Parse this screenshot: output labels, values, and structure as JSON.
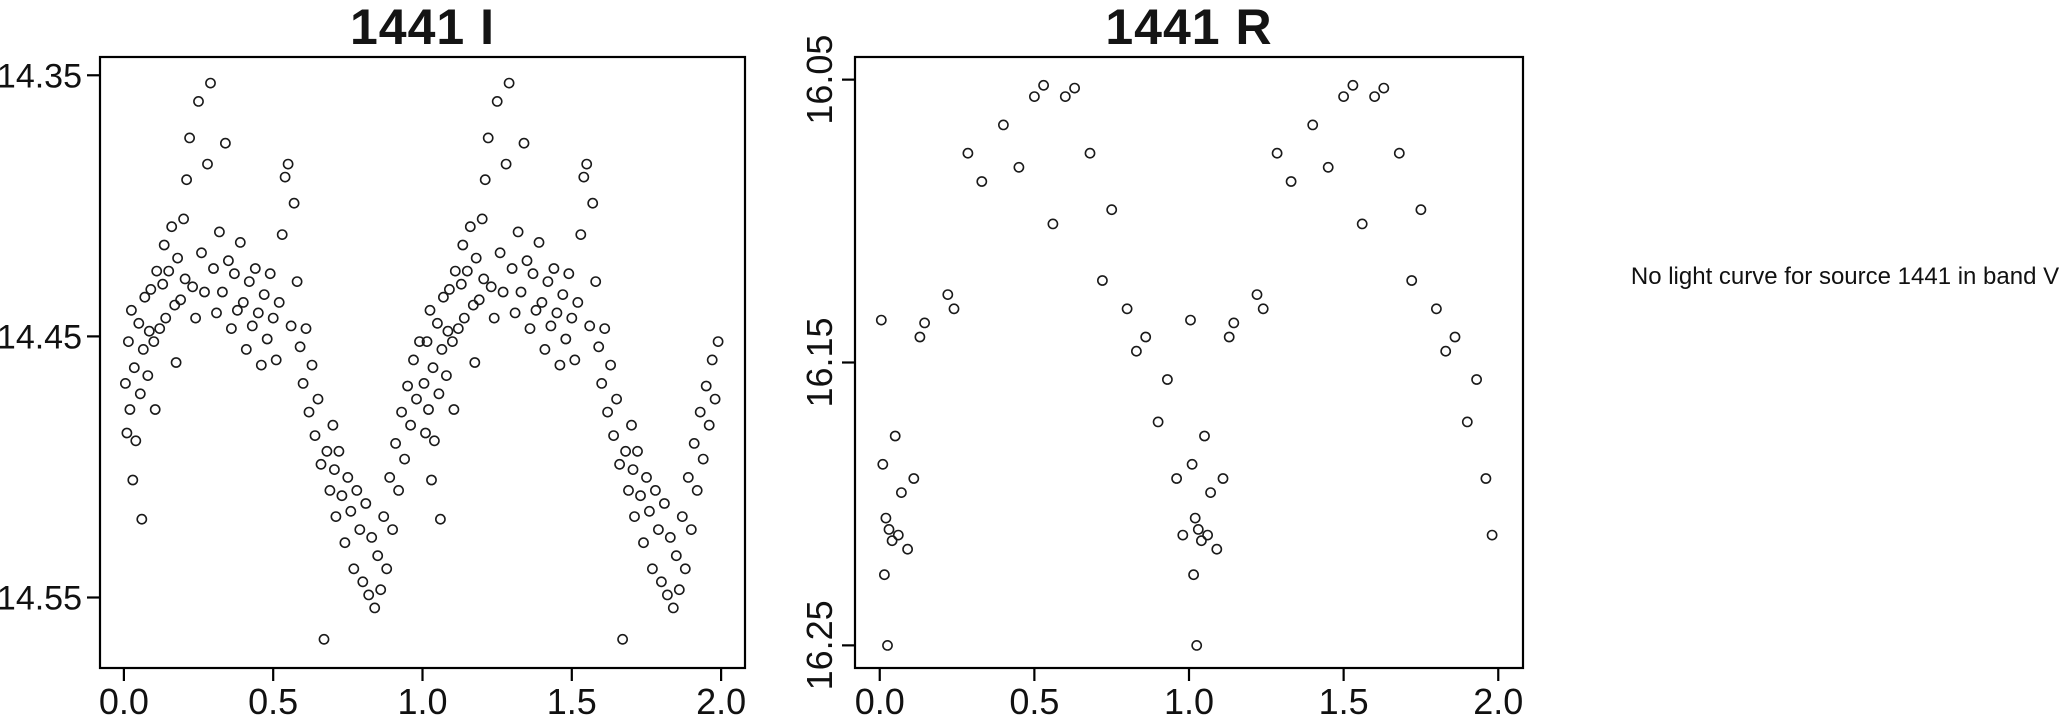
{
  "figure": {
    "background": "#ffffff",
    "axis_color": "#000000",
    "point_color": "#1a1a1a"
  },
  "annotation": {
    "text": "No light curve for source 1441 in band V"
  },
  "chart_data": [
    {
      "type": "scatter",
      "title": "1441 I",
      "xlabel": "",
      "ylabel": "",
      "legend": null,
      "grid": false,
      "marker": "open-circle",
      "x_tick_values": [
        0,
        0.5,
        1,
        1.5,
        2
      ],
      "x_tick_labels": [
        "0.0",
        "0.5",
        "1.0",
        "1.5",
        "2.0"
      ],
      "y_tick_values": [
        14.35,
        14.45,
        14.55
      ],
      "y_tick_labels": [
        "14.35",
        "14.45",
        "14.55"
      ],
      "y_ticks_rotated": false,
      "xlim": [
        -0.08,
        2.08
      ],
      "ylim_top": 14.343,
      "ylim_bottom": 14.577,
      "y_inverted": true,
      "phase_fold_repeat": true,
      "points_phase_mag": [
        [
          0.005,
          14.468
        ],
        [
          0.01,
          14.487
        ],
        [
          0.015,
          14.452
        ],
        [
          0.02,
          14.478
        ],
        [
          0.025,
          14.44
        ],
        [
          0.03,
          14.505
        ],
        [
          0.035,
          14.462
        ],
        [
          0.04,
          14.49
        ],
        [
          0.05,
          14.445
        ],
        [
          0.055,
          14.472
        ],
        [
          0.06,
          14.52
        ],
        [
          0.065,
          14.455
        ],
        [
          0.07,
          14.435
        ],
        [
          0.08,
          14.465
        ],
        [
          0.085,
          14.448
        ],
        [
          0.09,
          14.432
        ],
        [
          0.1,
          14.452
        ],
        [
          0.105,
          14.478
        ],
        [
          0.11,
          14.425
        ],
        [
          0.12,
          14.447
        ],
        [
          0.13,
          14.43
        ],
        [
          0.135,
          14.415
        ],
        [
          0.14,
          14.443
        ],
        [
          0.15,
          14.425
        ],
        [
          0.16,
          14.408
        ],
        [
          0.17,
          14.438
        ],
        [
          0.175,
          14.46
        ],
        [
          0.18,
          14.42
        ],
        [
          0.19,
          14.436
        ],
        [
          0.2,
          14.405
        ],
        [
          0.205,
          14.428
        ],
        [
          0.21,
          14.39
        ],
        [
          0.22,
          14.374
        ],
        [
          0.23,
          14.431
        ],
        [
          0.24,
          14.443
        ],
        [
          0.25,
          14.36
        ],
        [
          0.26,
          14.418
        ],
        [
          0.27,
          14.433
        ],
        [
          0.28,
          14.384
        ],
        [
          0.29,
          14.353
        ],
        [
          0.3,
          14.424
        ],
        [
          0.31,
          14.441
        ],
        [
          0.32,
          14.41
        ],
        [
          0.33,
          14.433
        ],
        [
          0.34,
          14.376
        ],
        [
          0.35,
          14.421
        ],
        [
          0.36,
          14.447
        ],
        [
          0.37,
          14.426
        ],
        [
          0.38,
          14.44
        ],
        [
          0.39,
          14.414
        ],
        [
          0.4,
          14.437
        ],
        [
          0.41,
          14.455
        ],
        [
          0.42,
          14.429
        ],
        [
          0.43,
          14.446
        ],
        [
          0.44,
          14.424
        ],
        [
          0.45,
          14.441
        ],
        [
          0.46,
          14.461
        ],
        [
          0.47,
          14.434
        ],
        [
          0.48,
          14.451
        ],
        [
          0.49,
          14.426
        ],
        [
          0.5,
          14.443
        ],
        [
          0.51,
          14.459
        ],
        [
          0.52,
          14.437
        ],
        [
          0.53,
          14.411
        ],
        [
          0.54,
          14.389
        ],
        [
          0.55,
          14.384
        ],
        [
          0.56,
          14.446
        ],
        [
          0.57,
          14.399
        ],
        [
          0.58,
          14.429
        ],
        [
          0.59,
          14.454
        ],
        [
          0.6,
          14.468
        ],
        [
          0.61,
          14.447
        ],
        [
          0.62,
          14.479
        ],
        [
          0.63,
          14.461
        ],
        [
          0.64,
          14.488
        ],
        [
          0.65,
          14.474
        ],
        [
          0.66,
          14.499
        ],
        [
          0.67,
          14.566
        ],
        [
          0.68,
          14.494
        ],
        [
          0.69,
          14.509
        ],
        [
          0.7,
          14.484
        ],
        [
          0.705,
          14.501
        ],
        [
          0.71,
          14.519
        ],
        [
          0.72,
          14.494
        ],
        [
          0.73,
          14.511
        ],
        [
          0.74,
          14.529
        ],
        [
          0.75,
          14.504
        ],
        [
          0.76,
          14.517
        ],
        [
          0.77,
          14.539
        ],
        [
          0.78,
          14.509
        ],
        [
          0.79,
          14.524
        ],
        [
          0.8,
          14.544
        ],
        [
          0.81,
          14.514
        ],
        [
          0.82,
          14.549
        ],
        [
          0.83,
          14.527
        ],
        [
          0.84,
          14.554
        ],
        [
          0.85,
          14.534
        ],
        [
          0.86,
          14.547
        ],
        [
          0.87,
          14.519
        ],
        [
          0.88,
          14.539
        ],
        [
          0.89,
          14.504
        ],
        [
          0.9,
          14.524
        ],
        [
          0.91,
          14.491
        ],
        [
          0.92,
          14.509
        ],
        [
          0.93,
          14.479
        ],
        [
          0.94,
          14.497
        ],
        [
          0.95,
          14.469
        ],
        [
          0.96,
          14.484
        ],
        [
          0.97,
          14.459
        ],
        [
          0.98,
          14.474
        ],
        [
          0.99,
          14.452
        ]
      ]
    },
    {
      "type": "scatter",
      "title": "1441 R",
      "xlabel": "",
      "ylabel": "",
      "legend": null,
      "grid": false,
      "marker": "open-circle",
      "x_tick_values": [
        0,
        0.5,
        1,
        1.5,
        2
      ],
      "x_tick_labels": [
        "0.0",
        "0.5",
        "1.0",
        "1.5",
        "2.0"
      ],
      "y_tick_values": [
        16.05,
        16.15,
        16.25
      ],
      "y_tick_labels": [
        "16.05",
        "16.15",
        "16.25"
      ],
      "y_ticks_rotated": true,
      "xlim": [
        -0.08,
        2.08
      ],
      "ylim_top": 16.042,
      "ylim_bottom": 16.258,
      "y_inverted": true,
      "phase_fold_repeat": true,
      "points_phase_mag": [
        [
          0.005,
          16.135
        ],
        [
          0.01,
          16.186
        ],
        [
          0.015,
          16.225
        ],
        [
          0.02,
          16.205
        ],
        [
          0.025,
          16.25
        ],
        [
          0.03,
          16.209
        ],
        [
          0.04,
          16.213
        ],
        [
          0.05,
          16.176
        ],
        [
          0.06,
          16.211
        ],
        [
          0.07,
          16.196
        ],
        [
          0.09,
          16.216
        ],
        [
          0.11,
          16.191
        ],
        [
          0.13,
          16.141
        ],
        [
          0.145,
          16.136
        ],
        [
          0.22,
          16.126
        ],
        [
          0.24,
          16.131
        ],
        [
          0.285,
          16.076
        ],
        [
          0.33,
          16.086
        ],
        [
          0.4,
          16.066
        ],
        [
          0.45,
          16.081
        ],
        [
          0.5,
          16.056
        ],
        [
          0.53,
          16.052
        ],
        [
          0.56,
          16.101
        ],
        [
          0.6,
          16.056
        ],
        [
          0.63,
          16.053
        ],
        [
          0.68,
          16.076
        ],
        [
          0.72,
          16.121
        ],
        [
          0.75,
          16.096
        ],
        [
          0.8,
          16.131
        ],
        [
          0.83,
          16.146
        ],
        [
          0.86,
          16.141
        ],
        [
          0.9,
          16.171
        ],
        [
          0.93,
          16.156
        ],
        [
          0.96,
          16.191
        ],
        [
          0.98,
          16.211
        ]
      ]
    }
  ]
}
